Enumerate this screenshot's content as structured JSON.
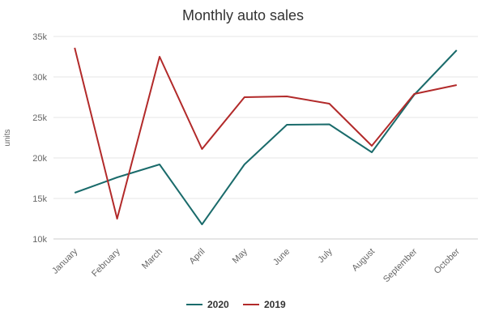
{
  "chart_data": {
    "type": "line",
    "title": "Monthly auto sales",
    "xlabel": "",
    "ylabel": "units",
    "categories": [
      "January",
      "February",
      "March",
      "April",
      "May",
      "June",
      "July",
      "August",
      "September",
      "October"
    ],
    "ylim": [
      10000,
      35000
    ],
    "yticks": [
      10000,
      15000,
      20000,
      25000,
      30000,
      35000
    ],
    "ytick_labels": [
      "10k",
      "15k",
      "20k",
      "25k",
      "30k",
      "35k"
    ],
    "grid": true,
    "legend": "bottom-center",
    "series": [
      {
        "name": "2020",
        "color": "#1a6b6b",
        "values": [
          15700,
          17600,
          19200,
          11800,
          19200,
          24100,
          24150,
          20700,
          27800,
          33300
        ]
      },
      {
        "name": "2019",
        "color": "#b22a2a",
        "values": [
          33600,
          12500,
          32500,
          21100,
          27500,
          27600,
          26700,
          21500,
          27900,
          29000
        ]
      }
    ]
  }
}
